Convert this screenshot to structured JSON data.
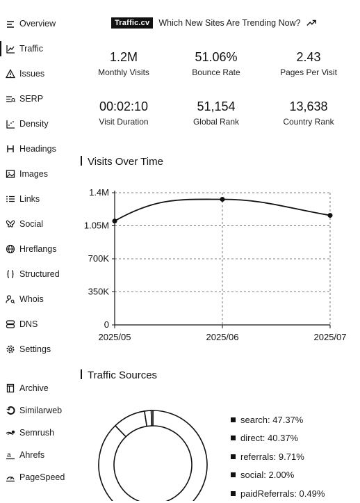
{
  "sidebar": {
    "items": [
      {
        "label": "Overview",
        "icon": "overview-icon"
      },
      {
        "label": "Traffic",
        "icon": "traffic-chart-icon",
        "active": true
      },
      {
        "label": "Issues",
        "icon": "warning-icon"
      },
      {
        "label": "SERP",
        "icon": "serp-icon"
      },
      {
        "label": "Density",
        "icon": "density-chart-icon"
      },
      {
        "label": "Headings",
        "icon": "heading-icon"
      },
      {
        "label": "Images",
        "icon": "image-icon"
      },
      {
        "label": "Links",
        "icon": "links-list-icon"
      },
      {
        "label": "Social",
        "icon": "bluesky-icon"
      },
      {
        "label": "Hreflangs",
        "icon": "globe-icon"
      },
      {
        "label": "Structured",
        "icon": "braces-icon"
      },
      {
        "label": "Whois",
        "icon": "person-search-icon"
      },
      {
        "label": "DNS",
        "icon": "server-icon"
      },
      {
        "label": "Settings",
        "icon": "gear-icon"
      }
    ],
    "tools": [
      {
        "label": "Archive",
        "icon": "archive-icon"
      },
      {
        "label": "Similarweb",
        "icon": "similarweb-icon"
      },
      {
        "label": "Semrush",
        "icon": "semrush-icon"
      },
      {
        "label": "Ahrefs",
        "icon": "ahrefs-icon"
      },
      {
        "label": "PageSpeed",
        "icon": "pagespeed-icon"
      }
    ]
  },
  "banner": {
    "brand": "Traffic.cv",
    "text": "Which New Sites Are Trending Now?"
  },
  "stats": {
    "monthly_visits": {
      "value": "1.2M",
      "label": "Monthly Visits"
    },
    "bounce_rate": {
      "value": "51.06%",
      "label": "Bounce Rate"
    },
    "pages_per_visit": {
      "value": "2.43",
      "label": "Pages Per Visit"
    },
    "visit_duration": {
      "value": "00:02:10",
      "label": "Visit Duration"
    },
    "global_rank": {
      "value": "51,154",
      "label": "Global Rank"
    },
    "country_rank": {
      "value": "13,638",
      "label": "Country Rank"
    }
  },
  "visits_section": {
    "title": "Visits Over Time"
  },
  "sources_section": {
    "title": "Traffic Sources"
  },
  "chart_data": [
    {
      "type": "line",
      "x": [
        "2025/05",
        "2025/06",
        "2025/07"
      ],
      "values": [
        1100000,
        1330000,
        1160000
      ],
      "ylim": [
        0,
        1400000
      ],
      "yticks": [
        0,
        350000,
        700000,
        1050000,
        1400000
      ],
      "ytick_labels": [
        "0",
        "350K",
        "700K",
        "1.05M",
        "1.4M"
      ],
      "grid": true
    },
    {
      "type": "pie",
      "donut": true,
      "labels": [
        "search",
        "direct",
        "referrals",
        "social",
        "paidReferrals"
      ],
      "values": [
        47.37,
        40.37,
        9.71,
        2.0,
        0.49
      ],
      "legend_labels": [
        "search: 47.37%",
        "direct: 40.37%",
        "referrals: 9.71%",
        "social: 2.00%",
        "paidReferrals: 0.49%"
      ]
    }
  ]
}
